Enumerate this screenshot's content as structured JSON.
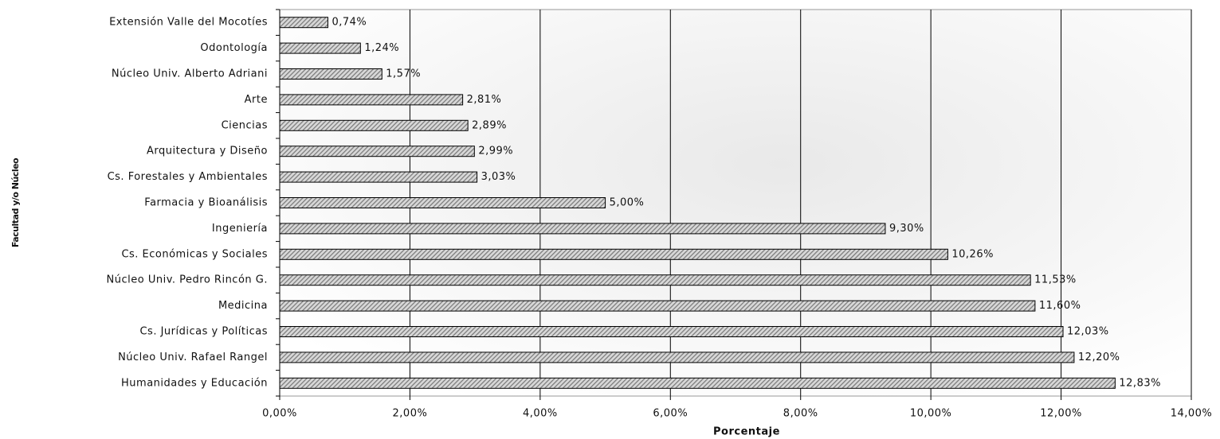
{
  "chart_data": {
    "type": "bar",
    "orientation": "horizontal",
    "xlabel": "Porcentaje",
    "ylabel": "Facultad y/o Núcleo",
    "categories": [
      "Extensión Valle del Mocotíes",
      "Odontología",
      "Núcleo Univ. Alberto Adriani",
      "Arte",
      "Ciencias",
      "Arquitectura y Diseño",
      "Cs. Forestales y Ambientales",
      "Farmacia y Bioanálisis",
      "Ingeniería",
      "Cs. Económicas y Sociales",
      "Núcleo Univ. Pedro Rincón G.",
      "Medicina",
      "Cs. Jurídicas y Políticas",
      "Núcleo Univ. Rafael Rangel",
      "Humanidades y Educación"
    ],
    "values": [
      0.74,
      1.24,
      1.57,
      2.81,
      2.89,
      2.99,
      3.03,
      5.0,
      9.3,
      10.26,
      11.53,
      11.6,
      12.03,
      12.2,
      12.83
    ],
    "value_labels": [
      "0,74%",
      "1,24%",
      "1,57%",
      "2,81%",
      "2,89%",
      "2,99%",
      "3,03%",
      "5,00%",
      "9,30%",
      "10,26%",
      "11,53%",
      "11,60%",
      "12,03%",
      "12,20%",
      "12,83%"
    ],
    "color": "#7a7a7a",
    "xlim": [
      0,
      14
    ],
    "xticks": [
      {
        "value": 0,
        "label": "0,00%"
      },
      {
        "value": 2,
        "label": "2,00%"
      },
      {
        "value": 4,
        "label": "4,00%"
      },
      {
        "value": 6,
        "label": "6,00%"
      },
      {
        "value": 8,
        "label": "8,00%"
      },
      {
        "value": 10,
        "label": "10,00%"
      },
      {
        "value": 12,
        "label": "12,00%"
      },
      {
        "value": 14,
        "label": "14,00%"
      }
    ],
    "grid": true
  }
}
